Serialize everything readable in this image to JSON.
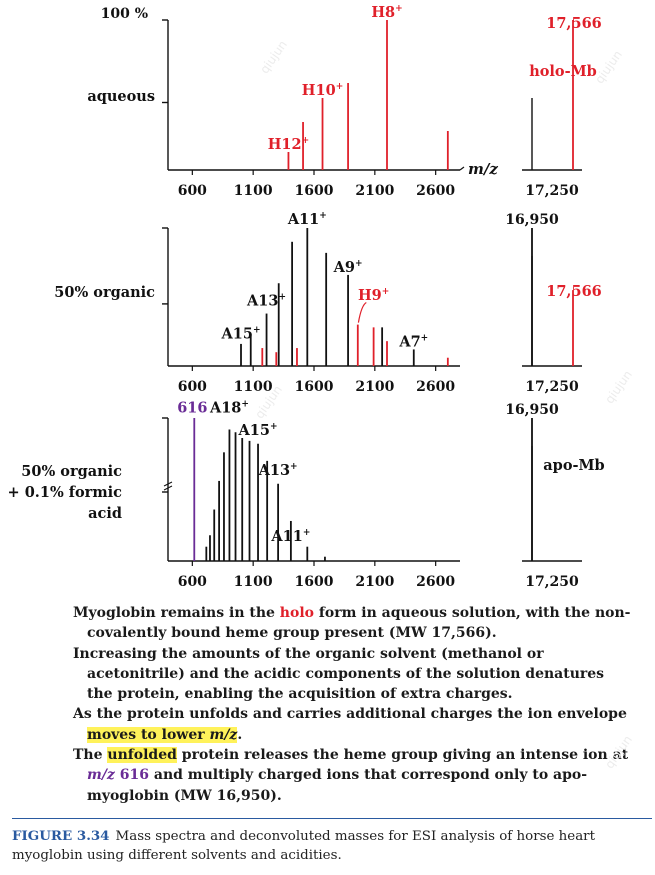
{
  "chart_data": [
    {
      "type": "bar",
      "row": "aqueous",
      "ylabel": "aqueous",
      "y_top_label": "100 %",
      "xlabel": "m/z",
      "xlim": [
        400,
        2800
      ],
      "ylim": [
        0,
        100
      ],
      "ticks": [
        "600",
        "1100",
        "1600",
        "2100",
        "2600"
      ],
      "peaks": [
        {
          "x": 1390,
          "y": 12,
          "color": "#e0202a"
        },
        {
          "x": 1510,
          "y": 32,
          "color": "#e0202a"
        },
        {
          "x": 1670,
          "y": 48,
          "color": "#e0202a"
        },
        {
          "x": 1880,
          "y": 58,
          "color": "#e0202a"
        },
        {
          "x": 2200,
          "y": 100,
          "color": "#e0202a"
        },
        {
          "x": 2700,
          "y": 26,
          "color": "#e0202a"
        }
      ],
      "labels": [
        {
          "x": 1390,
          "y": 14,
          "text": "H12",
          "color": "#e0202a"
        },
        {
          "x": 1670,
          "y": 50,
          "text": "H10",
          "color": "#e0202a"
        },
        {
          "x": 2200,
          "y": 102,
          "text": "H8",
          "color": "#e0202a"
        }
      ],
      "mass_panel": {
        "ticks": [
          "17,250"
        ],
        "peaks": [
          {
            "x": 17566,
            "y": 100,
            "color": "#e0202a"
          }
        ],
        "labels": [
          {
            "text": "17,566",
            "color": "#e0202a",
            "pos": "top"
          },
          {
            "text": "holo-Mb",
            "color": "#e0202a",
            "pos": "mid"
          }
        ]
      }
    },
    {
      "type": "bar",
      "row": "50% organic",
      "ylabel": "50% organic",
      "xlim": [
        400,
        2800
      ],
      "ylim": [
        0,
        100
      ],
      "ticks": [
        "600",
        "1100",
        "1600",
        "2100",
        "2600"
      ],
      "peaks": [
        {
          "x": 1000,
          "y": 16,
          "color": "#111111"
        },
        {
          "x": 1080,
          "y": 22,
          "color": "#111111"
        },
        {
          "x": 1175,
          "y": 13,
          "color": "#e0202a"
        },
        {
          "x": 1210,
          "y": 38,
          "color": "#111111"
        },
        {
          "x": 1290,
          "y": 10,
          "color": "#e0202a"
        },
        {
          "x": 1310,
          "y": 60,
          "color": "#111111"
        },
        {
          "x": 1420,
          "y": 90,
          "color": "#111111"
        },
        {
          "x": 1460,
          "y": 13,
          "color": "#e0202a"
        },
        {
          "x": 1545,
          "y": 100,
          "color": "#111111"
        },
        {
          "x": 1700,
          "y": 82,
          "color": "#111111"
        },
        {
          "x": 1880,
          "y": 66,
          "color": "#111111"
        },
        {
          "x": 1960,
          "y": 30,
          "color": "#e0202a"
        },
        {
          "x": 2090,
          "y": 28,
          "color": "#e0202a"
        },
        {
          "x": 2160,
          "y": 28,
          "color": "#111111"
        },
        {
          "x": 2200,
          "y": 18,
          "color": "#e0202a"
        },
        {
          "x": 2420,
          "y": 12,
          "color": "#111111"
        },
        {
          "x": 2700,
          "y": 6,
          "color": "#e0202a"
        }
      ],
      "labels": [
        {
          "x": 1000,
          "y": 20,
          "text": "A15",
          "color": "#111111"
        },
        {
          "x": 1210,
          "y": 44,
          "text": "A13",
          "color": "#111111"
        },
        {
          "x": 1545,
          "y": 103,
          "text": "A11",
          "color": "#111111"
        },
        {
          "x": 1880,
          "y": 68,
          "text": "A9",
          "color": "#111111"
        },
        {
          "x": 2090,
          "y": 48,
          "text": "H9",
          "color": "#e0202a"
        },
        {
          "x": 2420,
          "y": 14,
          "text": "A7",
          "color": "#111111"
        }
      ],
      "mass_panel": {
        "ticks": [
          "17,250"
        ],
        "top_label": "16,950",
        "peaks": [
          {
            "x": 16950,
            "y": 100,
            "color": "#111111"
          },
          {
            "x": 17566,
            "y": 55,
            "color": "#e0202a"
          }
        ],
        "labels": [
          {
            "text": "17,566",
            "color": "#e0202a",
            "pos": "mid"
          }
        ]
      }
    },
    {
      "type": "bar",
      "row": "50% organic + 0.1% formic acid",
      "ylabel": [
        "50% organic",
        "+ 0.1% formic",
        "acid"
      ],
      "xlim": [
        400,
        2800
      ],
      "ylim": [
        0,
        100
      ],
      "ticks": [
        "600",
        "1100",
        "1600",
        "2100",
        "2600"
      ],
      "peaks": [
        {
          "x": 616,
          "y": 100,
          "color": "#6a2c96"
        },
        {
          "x": 715,
          "y": 10,
          "color": "#111111"
        },
        {
          "x": 745,
          "y": 18,
          "color": "#111111"
        },
        {
          "x": 780,
          "y": 36,
          "color": "#111111"
        },
        {
          "x": 820,
          "y": 56,
          "color": "#111111"
        },
        {
          "x": 860,
          "y": 76,
          "color": "#111111"
        },
        {
          "x": 905,
          "y": 92,
          "color": "#111111"
        },
        {
          "x": 955,
          "y": 90,
          "color": "#111111"
        },
        {
          "x": 1010,
          "y": 86,
          "color": "#111111"
        },
        {
          "x": 1070,
          "y": 84,
          "color": "#111111"
        },
        {
          "x": 1140,
          "y": 82,
          "color": "#111111"
        },
        {
          "x": 1215,
          "y": 70,
          "color": "#111111"
        },
        {
          "x": 1305,
          "y": 54,
          "color": "#111111"
        },
        {
          "x": 1410,
          "y": 28,
          "color": "#111111"
        },
        {
          "x": 1545,
          "y": 10,
          "color": "#111111"
        },
        {
          "x": 1690,
          "y": 3,
          "color": "#111111"
        }
      ],
      "labels": [
        {
          "x": 600,
          "y": 104,
          "text": "616",
          "color": "#6a2c96"
        },
        {
          "x": 905,
          "y": 104,
          "text": "A18",
          "color": "#111111"
        },
        {
          "x": 1140,
          "y": 88,
          "text": "A15",
          "color": "#111111"
        },
        {
          "x": 1305,
          "y": 60,
          "text": "A13",
          "color": "#111111"
        },
        {
          "x": 1410,
          "y": 14,
          "text": "A11",
          "color": "#111111"
        }
      ],
      "mass_panel": {
        "ticks": [
          "17,250"
        ],
        "top_label": "16,950",
        "peaks": [
          {
            "x": 16950,
            "y": 100,
            "color": "#111111"
          }
        ],
        "labels": [
          {
            "text": "apo-Mb",
            "color": "#111111",
            "pos": "mid"
          }
        ]
      }
    }
  ],
  "notes": {
    "p1": {
      "a": "Myoglobin remains in the ",
      "b": "holo",
      "c": " form in aqueous solution, with the non-covalently bound heme group present (MW 17,566)."
    },
    "p2": "Increasing the amounts of the organic solvent (methanol or acetonitrile) and the acidic components of the solution denatures the protein, enabling the acquisition of extra charges.",
    "p3": {
      "a": "As the protein unfolds and carries additional charges the ion envelope ",
      "b": "moves to lower ",
      "c": "m/z",
      "d": "."
    },
    "p4": {
      "a": "The ",
      "b": "unfolded",
      "c": " protein releases the heme group giving an intense ion at ",
      "d": "m/z",
      "e": " 616",
      "f": " and multiply charged ions that correspond only to apo-myoglobin (MW 16,950)."
    }
  },
  "caption": {
    "label": "FIGURE 3.34",
    "text": "Mass spectra and deconvoluted masses for ESI analysis of horse heart myoglobin using different solvents and acidities."
  },
  "watermark": "qiujun"
}
